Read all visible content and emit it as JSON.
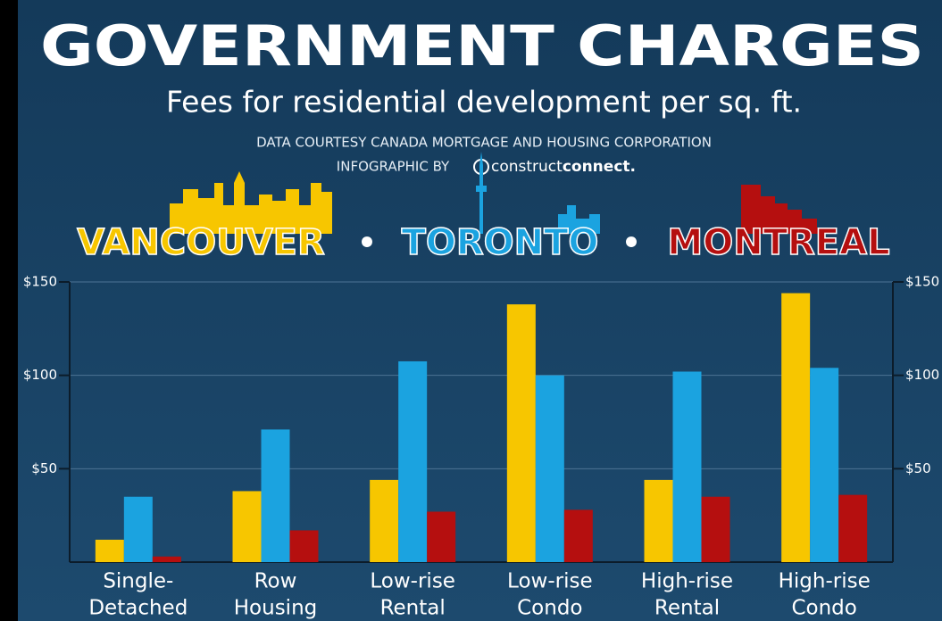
{
  "chart_data": {
    "type": "bar",
    "title": "GOVERNMENT CHARGES",
    "subtitle": "Fees for residential development per sq. ft.",
    "source": "DATA COURTESY CANADA MORTGAGE AND HOUSING CORPORATION",
    "credit": "INFOGRAPHIC BY",
    "brand_light": "construct",
    "brand_bold": "connect.",
    "categories": [
      [
        "Single-",
        "Detached"
      ],
      [
        "Row",
        "Housing"
      ],
      [
        "Low-rise",
        "Rental"
      ],
      [
        "Low-rise",
        "Condo"
      ],
      [
        "High-rise",
        "Rental"
      ],
      [
        "High-rise",
        "Condo"
      ]
    ],
    "series": [
      {
        "name": "VANCOUVER",
        "color": "#f7c600",
        "values": [
          12,
          38,
          44,
          138,
          44,
          144
        ]
      },
      {
        "name": "TORONTO",
        "color": "#1ba3e0",
        "values": [
          35,
          71,
          107.5,
          100,
          102,
          104
        ]
      },
      {
        "name": "MONTREAL",
        "color": "#b50f0f",
        "values": [
          3,
          17,
          27,
          28,
          35,
          36
        ]
      }
    ],
    "ylim": [
      0,
      150
    ],
    "yticks": [
      {
        "value": 50,
        "label": "$50"
      },
      {
        "value": 100,
        "label": "$100"
      },
      {
        "value": 150,
        "label": "$150"
      }
    ],
    "grid": true
  }
}
